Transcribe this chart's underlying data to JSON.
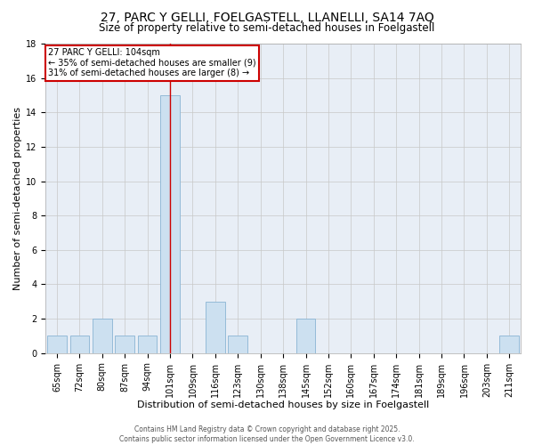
{
  "title": "27, PARC Y GELLI, FOELGASTELL, LLANELLI, SA14 7AQ",
  "subtitle": "Size of property relative to semi-detached houses in Foelgastell",
  "xlabel": "Distribution of semi-detached houses by size in Foelgastell",
  "ylabel": "Number of semi-detached properties",
  "categories": [
    "65sqm",
    "72sqm",
    "80sqm",
    "87sqm",
    "94sqm",
    "101sqm",
    "109sqm",
    "116sqm",
    "123sqm",
    "130sqm",
    "138sqm",
    "145sqm",
    "152sqm",
    "160sqm",
    "167sqm",
    "174sqm",
    "181sqm",
    "189sqm",
    "196sqm",
    "203sqm",
    "211sqm"
  ],
  "values": [
    1,
    1,
    2,
    1,
    1,
    15,
    0,
    3,
    1,
    0,
    0,
    2,
    0,
    0,
    0,
    0,
    0,
    0,
    0,
    0,
    1
  ],
  "highlight_index": 5,
  "bar_color": "#cce0f0",
  "bar_edge_color": "#8ab4d4",
  "annotation_text": "27 PARC Y GELLI: 104sqm\n← 35% of semi-detached houses are smaller (9)\n31% of semi-detached houses are larger (8) →",
  "ylim": [
    0,
    18
  ],
  "yticks": [
    0,
    2,
    4,
    6,
    8,
    10,
    12,
    14,
    16,
    18
  ],
  "footer": "Contains HM Land Registry data © Crown copyright and database right 2025.\nContains public sector information licensed under the Open Government Licence v3.0.",
  "bg_color": "#ffffff",
  "plot_bg_color": "#e8eef6",
  "grid_color": "#c8c8c8",
  "title_fontsize": 10,
  "subtitle_fontsize": 8.5,
  "axis_label_fontsize": 8,
  "tick_fontsize": 7,
  "ann_fontsize": 7
}
